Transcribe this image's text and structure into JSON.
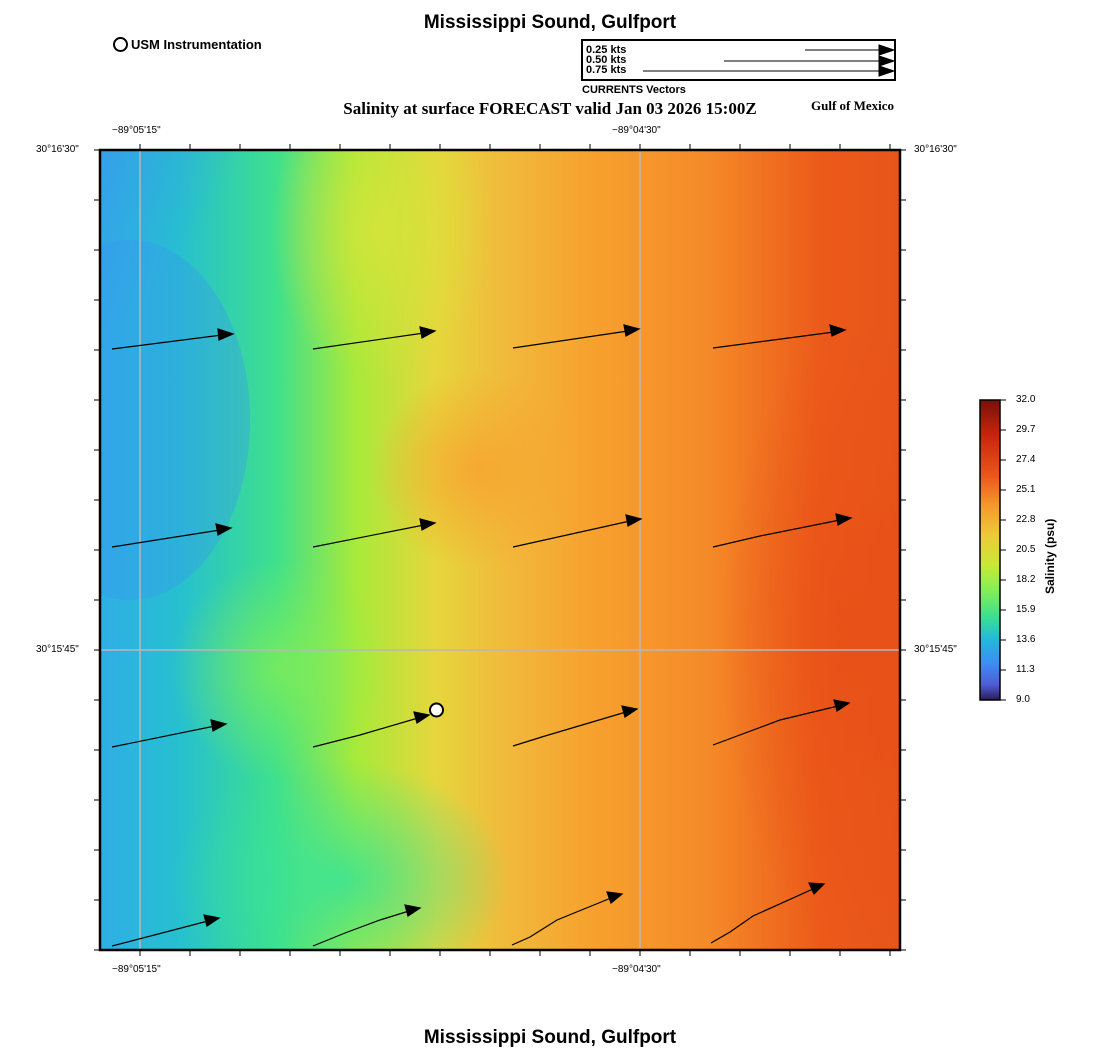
{
  "header": {
    "title": "Mississippi Sound, Gulfport",
    "subtitle": "Salinity at surface FORECAST valid Jan 03 2026 15:00Z",
    "region": "Gulf of Mexico",
    "station_legend": "USM Instrumentation"
  },
  "footer": {
    "title": "Mississippi Sound, Gulfport"
  },
  "vector_legend": {
    "title": "CURRENTS Vectors",
    "entries": [
      {
        "label": "0.25 kts",
        "speed": 0.25
      },
      {
        "label": "0.50 kts",
        "speed": 0.5
      },
      {
        "label": "0.75 kts",
        "speed": 0.75
      }
    ]
  },
  "axes": {
    "top_ticks": [
      "−89°05'15\"",
      "−89°04'30\""
    ],
    "bottom_ticks": [
      "−89°05'15\"",
      "−89°04'30\""
    ],
    "left_ticks": [
      "30°16'30\"",
      "30°15'45\""
    ],
    "right_ticks": [
      "30°16'30\"",
      "30°15'45\""
    ]
  },
  "colorbar": {
    "title": "Salinity (psu)",
    "min": 9.0,
    "max": 32.0,
    "labels": [
      "32.0",
      "29.7",
      "27.4",
      "25.1",
      "22.8",
      "20.5",
      "18.2",
      "15.9",
      "13.6",
      "11.3",
      "9.0"
    ],
    "colors": [
      "#7a0f0a",
      "#c8260c",
      "#e9561a",
      "#f6972b",
      "#eec93a",
      "#c9e837",
      "#86f052",
      "#3de08e",
      "#22b8dc",
      "#3d8cf5",
      "#4e5bd6",
      "#2a1a5a"
    ]
  },
  "station": {
    "name": "USM Instrumentation"
  }
}
